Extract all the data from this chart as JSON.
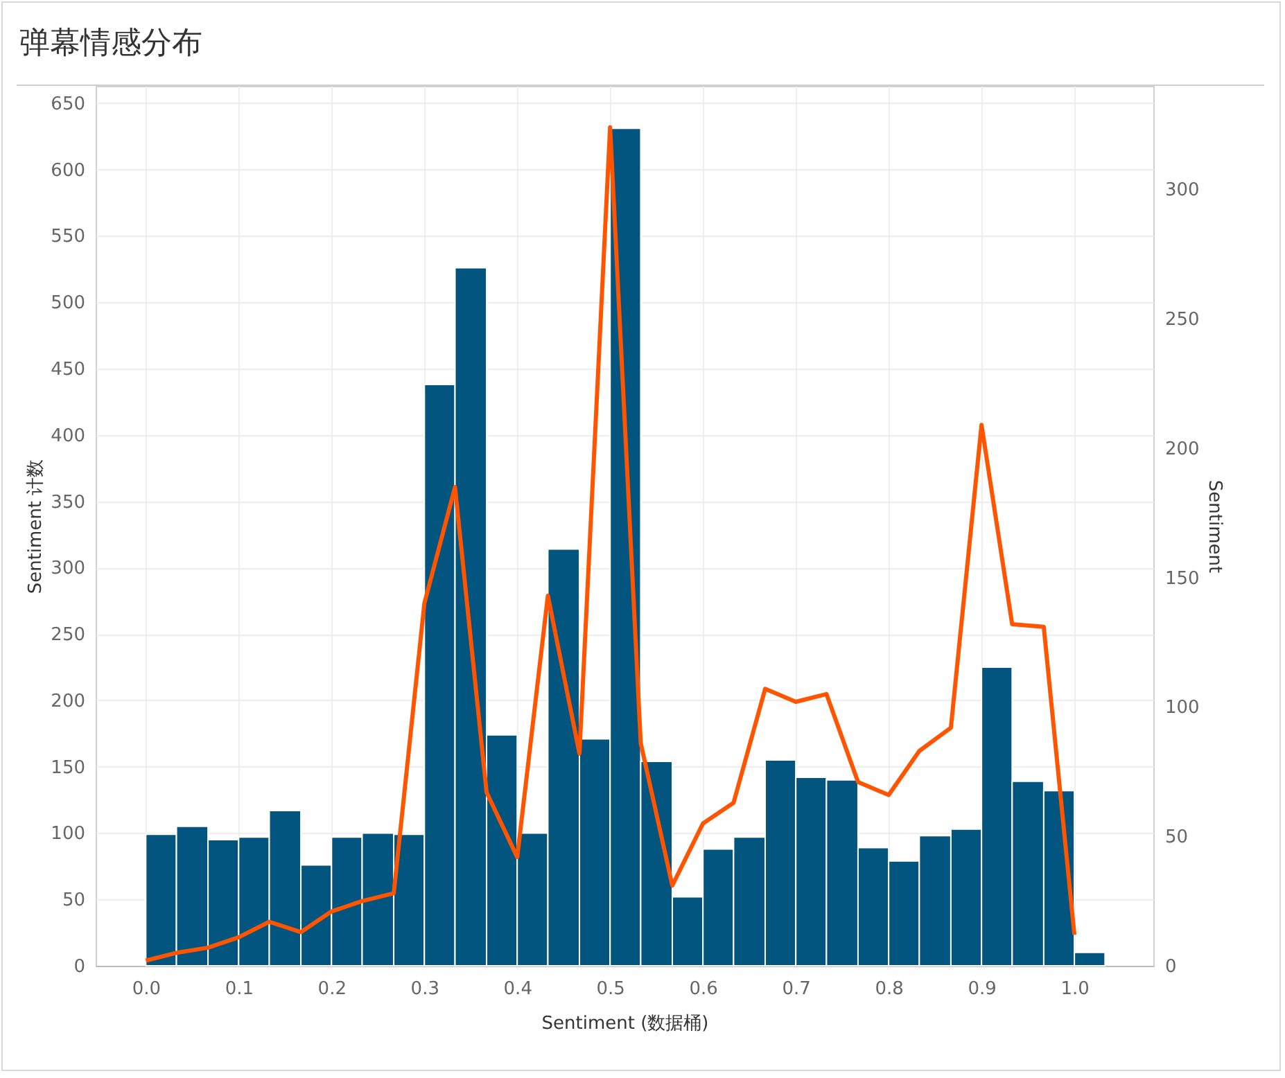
{
  "chart_data": {
    "type": "histogram",
    "title": "弹幕情感分布",
    "xlabel": "Sentiment (数据桶)",
    "ylabel": "Sentiment 计数",
    "y2label": "Sentiment",
    "bins": [
      0,
      0.033,
      0.067,
      0.1,
      0.133,
      0.167,
      0.2,
      0.233,
      0.267,
      0.3,
      0.333,
      0.367,
      0.4,
      0.433,
      0.467,
      0.5,
      0.533,
      0.567,
      0.6,
      0.633,
      0.667,
      0.7,
      0.733,
      0.767,
      0.8,
      0.833,
      0.867,
      0.9,
      0.933,
      0.967,
      1.0,
      1.033
    ],
    "series": [
      {
        "color": "#02557f",
        "values": [
          99,
          105,
          95,
          97,
          117,
          76,
          97,
          100,
          99,
          438,
          526,
          174,
          100,
          314,
          171,
          631,
          154,
          52,
          88,
          97,
          155,
          142,
          140,
          89,
          79,
          98,
          103,
          225,
          139,
          132,
          10
        ]
      },
      {
        "type": "line",
        "axis": "y2",
        "color": "#ff5400",
        "x": [
          0,
          0.033,
          0.067,
          0.1,
          0.133,
          0.167,
          0.2,
          0.233,
          0.267,
          0.3,
          0.333,
          0.367,
          0.4,
          0.433,
          0.467,
          0.5,
          0.533,
          0.567,
          0.6,
          0.633,
          0.667,
          0.7,
          0.733,
          0.767,
          0.8,
          0.833,
          0.867,
          0.9,
          0.933,
          0.967,
          1.0
        ],
        "values": [
          2,
          5,
          7,
          11,
          17,
          13,
          21,
          25,
          28,
          140,
          185,
          67,
          42,
          143,
          82,
          324,
          86,
          31,
          55,
          63,
          107,
          102,
          105,
          71,
          66,
          83,
          92,
          209,
          132,
          131,
          12
        ]
      }
    ],
    "xlim": [
      -0.054,
      1.085
    ],
    "xticks": [
      {
        "value": 0,
        "label": "0.0"
      },
      0.1,
      0.2,
      0.3,
      0.4,
      0.5,
      0.6,
      0.7,
      0.8,
      0.9,
      {
        "value": 1,
        "label": "1.0"
      }
    ],
    "ylim": [
      0,
      663
    ],
    "yticks": [
      0,
      50,
      100,
      150,
      200,
      250,
      300,
      350,
      400,
      450,
      500,
      550,
      600,
      650
    ],
    "y2lim": [
      0,
      340
    ],
    "y2ticks": [
      0,
      50,
      100,
      150,
      200,
      250,
      300
    ],
    "grid": true
  }
}
